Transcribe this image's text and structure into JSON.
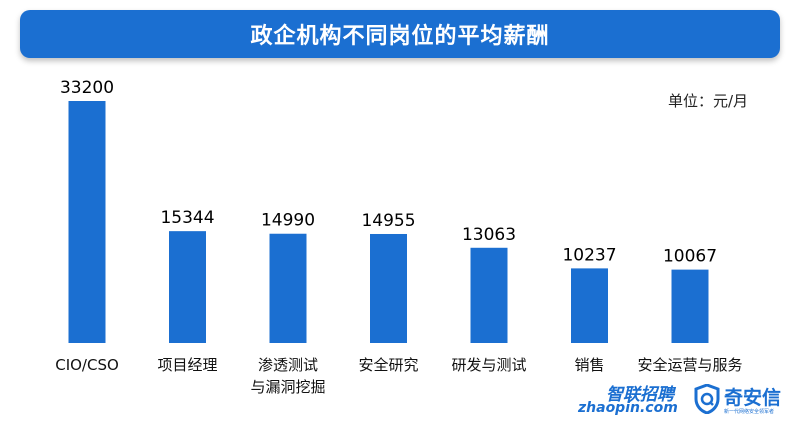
{
  "header": {
    "title": "政企机构不同岗位的平均薪酬"
  },
  "unit_label": "单位：元/月",
  "logos": {
    "zhaopin_cn": "智联招聘",
    "zhaopin_en": "zhaopin.com",
    "qax_name": "奇安信",
    "qax_tagline": "新一代网络安全领军者"
  },
  "colors": {
    "bar": "#1b6fd1",
    "title_bg": "#1b6fd1"
  },
  "chart_data": {
    "type": "bar",
    "title": "政企机构不同岗位的平均薪酬",
    "ylabel": "单位：元/月",
    "categories": [
      "CIO/CSO",
      "项目经理",
      "渗透测试\n与漏洞挖掘",
      "安全研究",
      "研发与测试",
      "销售",
      "安全运营与服务"
    ],
    "values": [
      33200,
      15344,
      14990,
      14955,
      13063,
      10237,
      10067
    ],
    "ylim": [
      0,
      33200
    ],
    "grid": false,
    "legend": "none"
  }
}
